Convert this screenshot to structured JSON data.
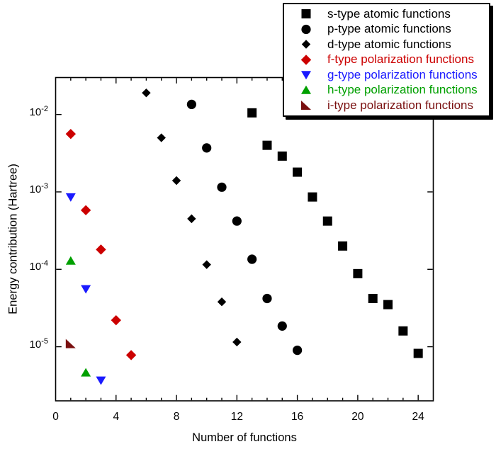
{
  "figure": {
    "background": "#ffffff",
    "frame_color": "#000000"
  },
  "chart_data": {
    "type": "scatter",
    "title": "",
    "xlabel": "Number of functions",
    "ylabel": "Energy contribution (Hartree)",
    "grid": false,
    "legend_position": "top-right",
    "x_axis": {
      "min": 0,
      "max": 25,
      "major_ticks": [
        0,
        4,
        8,
        12,
        16,
        20,
        24
      ],
      "minor_tick_step": 1
    },
    "y_axis": {
      "scale": "log",
      "min": 2e-06,
      "max": 0.03,
      "tick_base": "10",
      "tick_exponents": [
        -2,
        -3,
        -4,
        -5
      ]
    },
    "series": [
      {
        "name": "s-type atomic functions",
        "marker": "square",
        "color": "#000000",
        "points": [
          [
            13,
            0.0105
          ],
          [
            14,
            0.004
          ],
          [
            15,
            0.0029
          ],
          [
            16,
            0.0018
          ],
          [
            17,
            0.00086
          ],
          [
            18,
            0.00042
          ],
          [
            19,
            0.0002
          ],
          [
            20,
            8.8e-05
          ],
          [
            21,
            4.2e-05
          ],
          [
            22,
            3.5e-05
          ],
          [
            23,
            1.6e-05
          ],
          [
            24,
            8.2e-06
          ]
        ]
      },
      {
        "name": "p-type atomic functions",
        "marker": "circle",
        "color": "#000000",
        "points": [
          [
            9,
            0.0135
          ],
          [
            10,
            0.0037
          ],
          [
            11,
            0.00115
          ],
          [
            12,
            0.00042
          ],
          [
            13,
            0.000135
          ],
          [
            14,
            4.2e-05
          ],
          [
            15,
            1.85e-05
          ],
          [
            16,
            9e-06
          ]
        ]
      },
      {
        "name": "d-type atomic functions",
        "marker": "diamond-small",
        "color": "#000000",
        "points": [
          [
            6,
            0.019
          ],
          [
            7,
            0.005
          ],
          [
            8,
            0.0014
          ],
          [
            9,
            0.00045
          ],
          [
            10,
            0.000115
          ],
          [
            11,
            3.8e-05
          ],
          [
            12,
            1.15e-05
          ]
        ]
      },
      {
        "name": "f-type polarization functions",
        "marker": "diamond",
        "color": "#cc0000",
        "points": [
          [
            1,
            0.0056
          ],
          [
            2,
            0.00058
          ],
          [
            3,
            0.00018
          ],
          [
            4,
            2.2e-05
          ],
          [
            5,
            7.8e-06
          ]
        ]
      },
      {
        "name": "g-type polarization functions",
        "marker": "triangle-down",
        "color": "#1a1aff",
        "points": [
          [
            1,
            0.00086
          ],
          [
            2,
            5.6e-05
          ],
          [
            3,
            3.7e-06
          ]
        ]
      },
      {
        "name": "h-type polarization functions",
        "marker": "triangle-up",
        "color": "#00a000",
        "points": [
          [
            1,
            0.000128
          ],
          [
            2,
            4.6e-06
          ]
        ]
      },
      {
        "name": "i-type polarization functions",
        "marker": "triangle-lower-left",
        "color": "#7a1010",
        "points": [
          [
            1,
            1.1e-05
          ]
        ]
      }
    ]
  }
}
